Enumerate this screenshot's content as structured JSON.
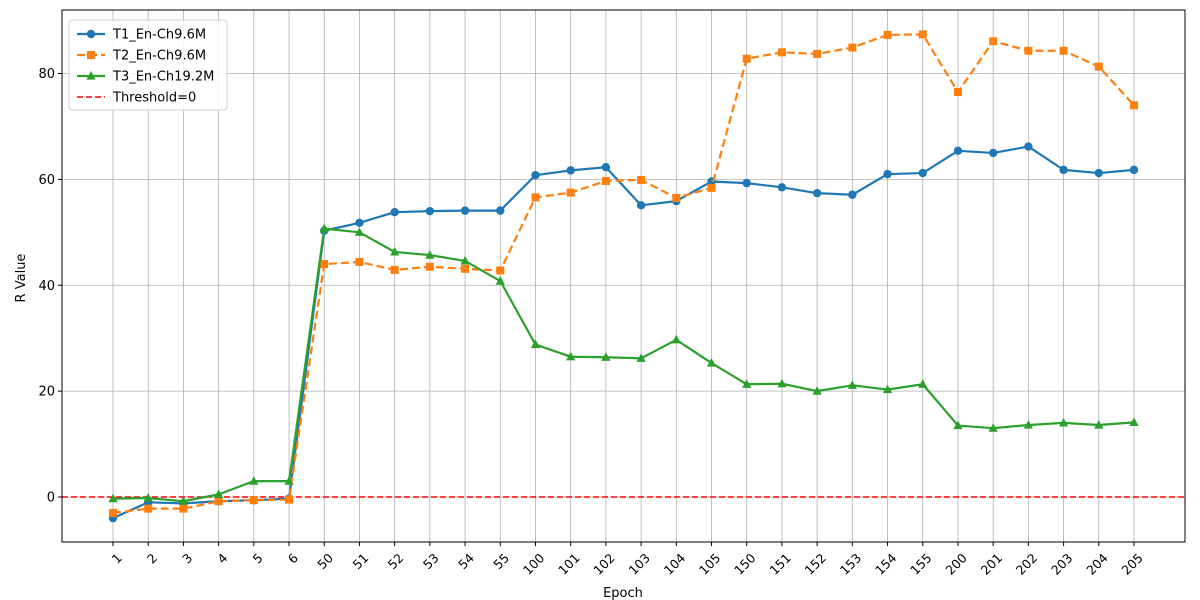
{
  "chart_data": {
    "type": "line",
    "title": "",
    "xlabel": "Epoch",
    "ylabel": "R Value",
    "categories": [
      "1",
      "2",
      "3",
      "4",
      "5",
      "6",
      "50",
      "51",
      "52",
      "53",
      "54",
      "55",
      "100",
      "101",
      "102",
      "103",
      "104",
      "105",
      "150",
      "151",
      "152",
      "153",
      "154",
      "155",
      "200",
      "201",
      "202",
      "203",
      "204",
      "205"
    ],
    "ylim": [
      -8.5,
      92
    ],
    "yticks": [
      0,
      20,
      40,
      60,
      80
    ],
    "grid": true,
    "legend": "top-left",
    "series": [
      {
        "name": "T1_En-Ch9.6M",
        "color": "#1f77b4",
        "marker": "circle",
        "dash": "solid",
        "values": [
          -4.0,
          -1.0,
          -1.2,
          -0.8,
          -0.6,
          -0.3,
          50.3,
          51.8,
          53.8,
          54.0,
          54.1,
          54.1,
          60.8,
          61.7,
          62.3,
          55.1,
          55.9,
          59.6,
          59.3,
          58.5,
          57.4,
          57.1,
          61.0,
          61.2,
          65.4,
          65.0,
          66.2,
          61.8,
          61.2,
          61.8
        ]
      },
      {
        "name": "T2_En-Ch9.6M",
        "color": "#ff7f0e",
        "marker": "square",
        "dash": "dashed",
        "values": [
          -3.0,
          -2.2,
          -2.2,
          -0.8,
          -0.6,
          -0.5,
          44.0,
          44.4,
          42.9,
          43.5,
          43.1,
          42.8,
          56.6,
          57.5,
          59.7,
          59.9,
          56.5,
          58.4,
          82.8,
          84.0,
          83.7,
          84.9,
          87.3,
          87.4,
          76.5,
          86.1,
          84.3,
          84.3,
          81.3,
          74.0
        ]
      },
      {
        "name": "T3_En-Ch19.2M",
        "color": "#2ca02c",
        "marker": "triangle",
        "dash": "solid",
        "values": [
          -0.3,
          -0.2,
          -0.8,
          0.5,
          3.0,
          3.0,
          50.7,
          50.0,
          46.3,
          45.7,
          44.6,
          40.8,
          28.8,
          26.5,
          26.4,
          26.2,
          29.7,
          25.3,
          21.3,
          21.4,
          20.0,
          21.1,
          20.3,
          21.3,
          13.5,
          13.0,
          13.6,
          14.0,
          13.6,
          14.1
        ]
      }
    ],
    "threshold": {
      "name": "Threshold=0",
      "value": 0,
      "color": "#ff0000"
    }
  }
}
